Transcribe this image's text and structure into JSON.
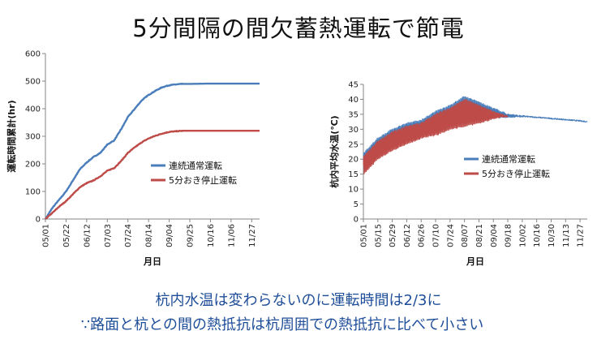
{
  "slide": {
    "title": "5分間隔の間欠蓄熱運転で節電",
    "footer_line1": "杭内水温は変わらないのに運転時間は2/3に",
    "footer_line2": "∵路面と杭との間の熱抵抗は杭周囲での熱抵抗に比べて小さい"
  },
  "colors": {
    "continuous": "#4a7ebb",
    "intermittent": "#be4b48",
    "axis": "#868686"
  },
  "chart_data": [
    {
      "type": "line",
      "xlabel": "月日",
      "ylabel": "運転時間累計(hr)",
      "ylim": [
        0,
        600
      ],
      "yticks": [
        0,
        100,
        200,
        300,
        400,
        500,
        600
      ],
      "xticks": [
        "05/01",
        "05/22",
        "06/12",
        "07/03",
        "07/24",
        "08/14",
        "09/04",
        "09/25",
        "10/16",
        "11/06",
        "11/27"
      ],
      "x_start": "05/01",
      "x_end": "12/05",
      "legend": "right",
      "series": [
        {
          "name": "連続通常運転",
          "color_key": "continuous",
          "points": [
            [
              "05/01",
              0
            ],
            [
              "05/08",
              40
            ],
            [
              "05/15",
              70
            ],
            [
              "05/22",
              100
            ],
            [
              "05/29",
              140
            ],
            [
              "06/05",
              180
            ],
            [
              "06/12",
              205
            ],
            [
              "06/19",
              225
            ],
            [
              "06/26",
              240
            ],
            [
              "07/03",
              270
            ],
            [
              "07/10",
              285
            ],
            [
              "07/17",
              325
            ],
            [
              "07/24",
              370
            ],
            [
              "07/31",
              400
            ],
            [
              "08/07",
              430
            ],
            [
              "08/14",
              450
            ],
            [
              "08/21",
              465
            ],
            [
              "08/28",
              478
            ],
            [
              "09/04",
              485
            ],
            [
              "09/11",
              488
            ],
            [
              "09/18",
              490
            ],
            [
              "09/25",
              490
            ],
            [
              "10/16",
              491
            ],
            [
              "11/06",
              491
            ],
            [
              "11/27",
              491
            ],
            [
              "12/05",
              491
            ]
          ]
        },
        {
          "name": "5分おき停止運転",
          "color_key": "intermittent",
          "points": [
            [
              "05/01",
              0
            ],
            [
              "05/08",
              22
            ],
            [
              "05/15",
              45
            ],
            [
              "05/22",
              65
            ],
            [
              "05/29",
              90
            ],
            [
              "06/05",
              115
            ],
            [
              "06/12",
              130
            ],
            [
              "06/19",
              140
            ],
            [
              "06/26",
              155
            ],
            [
              "07/03",
              175
            ],
            [
              "07/10",
              185
            ],
            [
              "07/17",
              210
            ],
            [
              "07/24",
              240
            ],
            [
              "07/31",
              260
            ],
            [
              "08/07",
              278
            ],
            [
              "08/14",
              292
            ],
            [
              "08/21",
              302
            ],
            [
              "08/28",
              310
            ],
            [
              "09/04",
              316
            ],
            [
              "09/11",
              318
            ],
            [
              "09/18",
              320
            ],
            [
              "09/25",
              320
            ],
            [
              "10/16",
              320
            ],
            [
              "11/06",
              320
            ],
            [
              "11/27",
              320
            ],
            [
              "12/05",
              320
            ]
          ]
        }
      ]
    },
    {
      "type": "line",
      "xlabel": "月日",
      "ylabel": "杭内平均水温(℃)",
      "ylim": [
        0,
        45
      ],
      "yticks": [
        0,
        5,
        10,
        15,
        20,
        25,
        30,
        35,
        40,
        45
      ],
      "xticks": [
        "05/01",
        "05/15",
        "05/29",
        "06/12",
        "06/26",
        "07/10",
        "07/24",
        "08/07",
        "08/21",
        "09/04",
        "09/18",
        "10/02",
        "10/16",
        "10/30",
        "11/13",
        "11/27"
      ],
      "x_start": "05/01",
      "x_end": "12/04",
      "legend": "right",
      "series": [
        {
          "name": "連続通常運転",
          "color_key": "continuous",
          "oscillating": true,
          "upper": [
            [
              "05/01",
              22
            ],
            [
              "05/15",
              27
            ],
            [
              "05/29",
              30
            ],
            [
              "06/12",
              32
            ],
            [
              "06/26",
              33
            ],
            [
              "07/10",
              36
            ],
            [
              "07/24",
              38
            ],
            [
              "08/07",
              41
            ],
            [
              "08/21",
              39
            ],
            [
              "09/04",
              37
            ],
            [
              "09/11",
              36
            ],
            [
              "09/18",
              35
            ],
            [
              "10/02",
              34.5
            ],
            [
              "10/16",
              34
            ],
            [
              "10/30",
              33.6
            ],
            [
              "11/13",
              33.2
            ],
            [
              "11/27",
              32.8
            ],
            [
              "12/04",
              32.5
            ]
          ],
          "lower": [
            [
              "05/01",
              16
            ],
            [
              "05/15",
              21
            ],
            [
              "05/29",
              24
            ],
            [
              "06/12",
              26
            ],
            [
              "06/26",
              28
            ],
            [
              "07/10",
              29
            ],
            [
              "07/24",
              31
            ],
            [
              "08/07",
              32
            ],
            [
              "08/21",
              33
            ],
            [
              "09/04",
              34
            ],
            [
              "09/11",
              34
            ],
            [
              "09/18",
              34
            ],
            [
              "10/02",
              34.2
            ],
            [
              "10/16",
              34
            ],
            [
              "10/30",
              33.6
            ],
            [
              "11/13",
              33.2
            ],
            [
              "11/27",
              32.8
            ],
            [
              "12/04",
              32.5
            ]
          ]
        },
        {
          "name": "5分おき停止運転",
          "color_key": "intermittent",
          "oscillating": true,
          "upper": [
            [
              "05/01",
              21
            ],
            [
              "05/15",
              26
            ],
            [
              "05/29",
              29
            ],
            [
              "06/12",
              31
            ],
            [
              "06/26",
              32
            ],
            [
              "07/10",
              35
            ],
            [
              "07/24",
              37
            ],
            [
              "08/07",
              40
            ],
            [
              "08/21",
              38
            ],
            [
              "09/04",
              36
            ],
            [
              "09/11",
              35
            ],
            [
              "09/18",
              34.5
            ]
          ],
          "lower": [
            [
              "05/01",
              15
            ],
            [
              "05/15",
              20
            ],
            [
              "05/29",
              23
            ],
            [
              "06/12",
              25
            ],
            [
              "06/26",
              27
            ],
            [
              "07/10",
              28
            ],
            [
              "07/24",
              30
            ],
            [
              "08/07",
              31
            ],
            [
              "08/21",
              32
            ],
            [
              "09/04",
              33.5
            ],
            [
              "09/11",
              34
            ],
            [
              "09/18",
              34.3
            ]
          ]
        }
      ]
    }
  ]
}
